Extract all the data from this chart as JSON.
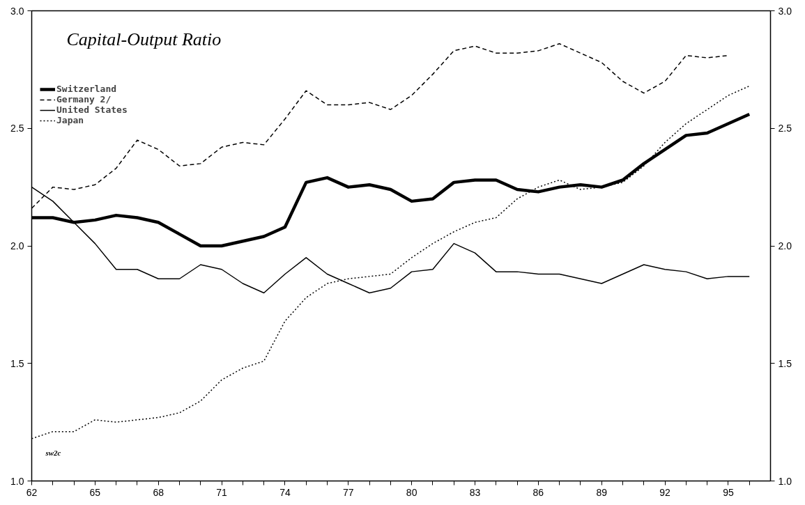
{
  "chart_data": {
    "type": "line",
    "title": "Capital-Output Ratio",
    "annotations": [
      "sw2c"
    ],
    "x": [
      62,
      63,
      64,
      65,
      66,
      67,
      68,
      69,
      70,
      71,
      72,
      73,
      74,
      75,
      76,
      77,
      78,
      79,
      80,
      81,
      82,
      83,
      84,
      85,
      86,
      87,
      88,
      89,
      90,
      91,
      92,
      93,
      94,
      95,
      96
    ],
    "series": [
      {
        "name": "Switzerland",
        "color": "#000000",
        "line_style": "solid",
        "values": [
          2.12,
          2.12,
          2.1,
          2.11,
          2.13,
          2.12,
          2.1,
          2.05,
          2.0,
          2.0,
          2.02,
          2.04,
          2.08,
          2.27,
          2.29,
          2.25,
          2.26,
          2.24,
          2.19,
          2.2,
          2.27,
          2.28,
          2.28,
          2.24,
          2.23,
          2.25,
          2.26,
          2.25,
          2.28,
          2.35,
          2.41,
          2.47,
          2.48,
          2.52,
          2.56
        ]
      },
      {
        "name": "Germany 2/",
        "color": "#000000",
        "line_style": "dashed",
        "values": [
          2.16,
          2.25,
          2.24,
          2.26,
          2.33,
          2.45,
          2.41,
          2.34,
          2.35,
          2.42,
          2.44,
          2.43,
          2.54,
          2.66,
          2.6,
          2.6,
          2.61,
          2.58,
          2.64,
          2.73,
          2.83,
          2.85,
          2.82,
          2.82,
          2.83,
          2.86,
          2.82,
          2.78,
          2.7,
          2.65,
          2.7,
          2.81,
          2.8,
          2.81,
          null
        ]
      },
      {
        "name": "United States",
        "color": "#000000",
        "line_style": "solid",
        "values": [
          2.25,
          2.19,
          2.1,
          2.01,
          1.9,
          1.9,
          1.86,
          1.86,
          1.92,
          1.9,
          1.84,
          1.8,
          1.88,
          1.95,
          1.88,
          1.84,
          1.8,
          1.82,
          1.89,
          1.9,
          2.01,
          1.97,
          1.89,
          1.89,
          1.88,
          1.88,
          1.86,
          1.84,
          1.88,
          1.92,
          1.9,
          1.89,
          1.86,
          1.87,
          1.87
        ]
      },
      {
        "name": "Japan",
        "color": "#000000",
        "line_style": "dotted",
        "values": [
          1.18,
          1.21,
          1.21,
          1.26,
          1.25,
          1.26,
          1.27,
          1.29,
          1.34,
          1.43,
          1.48,
          1.51,
          1.68,
          1.78,
          1.84,
          1.86,
          1.87,
          1.88,
          1.95,
          2.01,
          2.06,
          2.1,
          2.12,
          2.2,
          2.25,
          2.28,
          2.24,
          2.25,
          2.27,
          2.34,
          2.44,
          2.52,
          2.58,
          2.64,
          2.68
        ]
      }
    ],
    "xlim": [
      62,
      97
    ],
    "xticks": [
      62,
      {
        "value": 63,
        "label": null
      },
      {
        "value": 64,
        "label": null
      },
      65,
      {
        "value": 66,
        "label": null
      },
      {
        "value": 67,
        "label": null
      },
      68,
      {
        "value": 69,
        "label": null
      },
      {
        "value": 70,
        "label": null
      },
      71,
      {
        "value": 72,
        "label": null
      },
      {
        "value": 73,
        "label": null
      },
      74,
      {
        "value": 75,
        "label": null
      },
      {
        "value": 76,
        "label": null
      },
      77,
      {
        "value": 78,
        "label": null
      },
      {
        "value": 79,
        "label": null
      },
      80,
      {
        "value": 81,
        "label": null
      },
      {
        "value": 82,
        "label": null
      },
      83,
      {
        "value": 84,
        "label": null
      },
      {
        "value": 85,
        "label": null
      },
      86,
      {
        "value": 87,
        "label": null
      },
      {
        "value": 88,
        "label": null
      },
      89,
      {
        "value": 90,
        "label": null
      },
      {
        "value": 91,
        "label": null
      },
      92,
      {
        "value": 93,
        "label": null
      },
      {
        "value": 94,
        "label": null
      },
      95,
      {
        "value": 96,
        "label": null
      }
    ],
    "ylim": [
      1.0,
      3.0
    ],
    "yticks": [
      {
        "value": 1.0,
        "label": "1.0"
      },
      {
        "value": 1.5,
        "label": "1.5"
      },
      {
        "value": 2.0,
        "label": "2.0"
      },
      {
        "value": 2.5,
        "label": "2.5"
      },
      {
        "value": 3.0,
        "label": "3.0"
      }
    ],
    "y2lim": [
      1.0,
      3.0
    ],
    "y2ticks": [
      {
        "value": 1.0,
        "label": "1.0"
      },
      {
        "value": 1.5,
        "label": "1.5"
      },
      {
        "value": 2.0,
        "label": "2.0"
      },
      {
        "value": 2.5,
        "label": "2.5"
      },
      {
        "value": 3.0,
        "label": "3.0"
      }
    ],
    "grid": false,
    "legend": "top left",
    "marker": "none"
  }
}
